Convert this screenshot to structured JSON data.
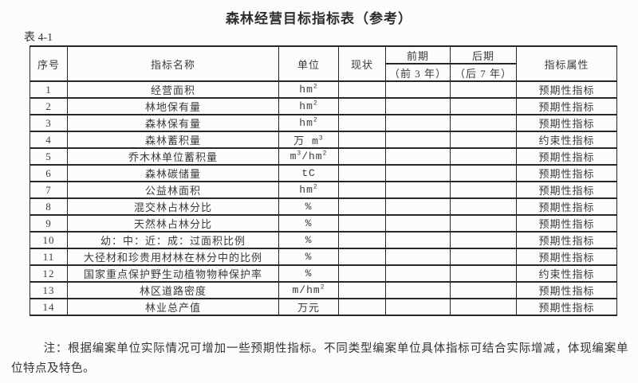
{
  "page": {
    "title": "森林经营目标指标表（参考）",
    "table_label": "表 4-1"
  },
  "table": {
    "headers": {
      "no": "序号",
      "name": "指标名称",
      "unit": "单位",
      "current": "现状",
      "early_top": "前期",
      "early_bottom": "（前 3 年）",
      "late_top": "后期",
      "late_bottom": "（后 7 年）",
      "attribute": "指标属性"
    },
    "rows": [
      {
        "no": "1",
        "name": "经营面积",
        "unit": [
          {
            "t": "hm"
          },
          {
            "t": "2",
            "sup": true
          }
        ],
        "current": "",
        "early": "",
        "late": "",
        "attr": "预期性指标"
      },
      {
        "no": "2",
        "name": "林地保有量",
        "unit": [
          {
            "t": "hm"
          },
          {
            "t": "2",
            "sup": true
          }
        ],
        "current": "",
        "early": "",
        "late": "",
        "attr": "预期性指标"
      },
      {
        "no": "3",
        "name": "森林保有量",
        "unit": [
          {
            "t": "hm"
          },
          {
            "t": "2",
            "sup": true
          }
        ],
        "current": "",
        "early": "",
        "late": "",
        "attr": "预期性指标"
      },
      {
        "no": "4",
        "name": "森林蓄积量",
        "unit": [
          {
            "t": "万 m"
          },
          {
            "t": "3",
            "sup": true
          }
        ],
        "current": "",
        "early": "",
        "late": "",
        "attr": "约束性指标"
      },
      {
        "no": "5",
        "name": "乔木林单位蓄积量",
        "unit": [
          {
            "t": "m"
          },
          {
            "t": "3",
            "sup": true
          },
          {
            "t": "/hm"
          },
          {
            "t": "2",
            "sup": true
          }
        ],
        "current": "",
        "early": "",
        "late": "",
        "attr": "预期性指标"
      },
      {
        "no": "6",
        "name": "森林碳储量",
        "unit": [
          {
            "t": "tC"
          }
        ],
        "current": "",
        "early": "",
        "late": "",
        "attr": "预期性指标"
      },
      {
        "no": "7",
        "name": "公益林面积",
        "unit": [
          {
            "t": "hm"
          },
          {
            "t": "2",
            "sup": true
          }
        ],
        "current": "",
        "early": "",
        "late": "",
        "attr": "预期性指标"
      },
      {
        "no": "8",
        "name": "混交林占林分比",
        "unit": [
          {
            "t": "%"
          }
        ],
        "current": "",
        "early": "",
        "late": "",
        "attr": "预期性指标"
      },
      {
        "no": "9",
        "name": "天然林占林分比",
        "unit": [
          {
            "t": "%"
          }
        ],
        "current": "",
        "early": "",
        "late": "",
        "attr": "预期性指标"
      },
      {
        "no": "10",
        "name": "幼：中：近：成：过面积比例",
        "unit": [
          {
            "t": "%"
          }
        ],
        "current": "",
        "early": "",
        "late": "",
        "attr": "预期性指标"
      },
      {
        "no": "11",
        "name": "大径材和珍贵用材林在林分中的比例",
        "unit": [
          {
            "t": "%"
          }
        ],
        "current": "",
        "early": "",
        "late": "",
        "attr": "预期性指标"
      },
      {
        "no": "12",
        "name": "国家重点保护野生动植物物种保护率",
        "unit": [
          {
            "t": "%"
          }
        ],
        "current": "",
        "early": "",
        "late": "",
        "attr": "约束性指标"
      },
      {
        "no": "13",
        "name": "林区道路密度",
        "unit": [
          {
            "t": "m/hm"
          },
          {
            "t": "2",
            "sup": true
          }
        ],
        "current": "",
        "early": "",
        "late": "",
        "attr": "预期性指标"
      },
      {
        "no": "14",
        "name": "林业总产值",
        "unit": [
          {
            "t": "万元"
          }
        ],
        "current": "",
        "early": "",
        "late": "",
        "attr": "预期性指标"
      }
    ]
  },
  "note": {
    "text": "注：根据编案单位实际情况可增加一些预期性指标。不同类型编案单位具体指标可结合实际增减，体现编案单位特点及特色。"
  },
  "colors": {
    "background": "#fcfcfc",
    "text": "#3a3a3a",
    "border": "#262626"
  }
}
